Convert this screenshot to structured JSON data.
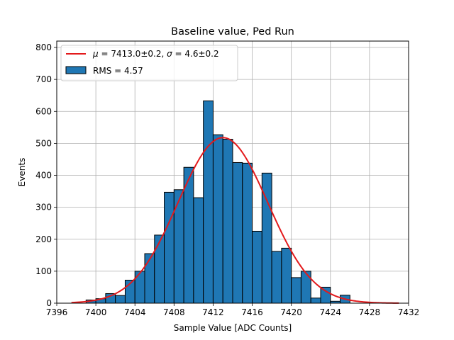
{
  "chart_data": {
    "type": "bar",
    "title": "Baseline value, Ped Run",
    "xlabel": "Sample Value [ADC Counts]",
    "ylabel": "Events",
    "xlim": [
      7396,
      7432
    ],
    "ylim": [
      0,
      820
    ],
    "xticks": [
      7396,
      7400,
      7404,
      7408,
      7412,
      7416,
      7420,
      7424,
      7428,
      7432
    ],
    "yticks": [
      0,
      100,
      200,
      300,
      400,
      500,
      600,
      700,
      800
    ],
    "grid": true,
    "legend_placement": "top-left",
    "histogram": {
      "name": "RMS = 4.57",
      "color": "#1f77b4",
      "edgecolor": "#000000",
      "bin_edges": [
        7398.0,
        7399.0,
        7400.0,
        7401.0,
        7402.0,
        7403.0,
        7404.0,
        7405.0,
        7406.0,
        7407.0,
        7408.0,
        7409.0,
        7410.0,
        7411.0,
        7412.0,
        7413.0,
        7414.0,
        7415.0,
        7416.0,
        7417.0,
        7418.0,
        7419.0,
        7420.0,
        7421.0,
        7422.0,
        7423.0,
        7424.0,
        7425.0,
        7426.0
      ],
      "counts": [
        0,
        10,
        14,
        30,
        24,
        72,
        100,
        155,
        213,
        347,
        355,
        425,
        330,
        633,
        527,
        513,
        440,
        438,
        225,
        407,
        162,
        172,
        80,
        100,
        16,
        50,
        6,
        25
      ]
    },
    "fit": {
      "name": "$\\mu = 7413.0 \\pm 0.2$, $\\sigma = 4.6 \\pm 0.2$",
      "legend_text_mu": "μ",
      "legend_text_mid": " = 7413.0±0.2, ",
      "legend_text_sigma": "σ",
      "legend_text_end": " = 4.6±0.2",
      "color": "#e31a1c",
      "mu": 7413.0,
      "sigma": 4.6,
      "amplitude": 518,
      "x_range": [
        7397.5,
        7431
      ]
    }
  }
}
